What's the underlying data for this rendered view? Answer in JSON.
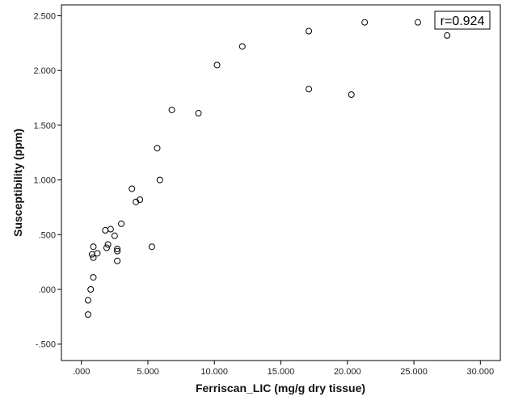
{
  "chart_data": {
    "type": "scatter",
    "xlabel": "Ferriscan_LIC (mg/g dry tissue)",
    "ylabel": "Susceptibility (ppm)",
    "xlim": [
      -1.5,
      31.5
    ],
    "ylim": [
      -0.65,
      2.6
    ],
    "x_ticks": [
      0,
      5,
      10,
      15,
      20,
      25,
      30
    ],
    "x_tick_labels": [
      ".000",
      "5.000",
      "10.000",
      "15.000",
      "20.000",
      "25.000",
      "30.000"
    ],
    "y_ticks": [
      -0.5,
      0,
      0.5,
      1.0,
      1.5,
      2.0,
      2.5
    ],
    "y_tick_labels": [
      "-.500",
      ".000",
      ".500",
      "1.000",
      "1.500",
      "2.000",
      "2.500"
    ],
    "grid": false,
    "annotation": "r=0.924",
    "points": [
      {
        "x": 0.5,
        "y": -0.23
      },
      {
        "x": 0.5,
        "y": -0.1
      },
      {
        "x": 0.7,
        "y": 0.0
      },
      {
        "x": 0.9,
        "y": 0.11
      },
      {
        "x": 0.8,
        "y": 0.32
      },
      {
        "x": 0.9,
        "y": 0.29
      },
      {
        "x": 0.9,
        "y": 0.39
      },
      {
        "x": 1.2,
        "y": 0.33
      },
      {
        "x": 1.8,
        "y": 0.54
      },
      {
        "x": 1.9,
        "y": 0.38
      },
      {
        "x": 2.0,
        "y": 0.41
      },
      {
        "x": 2.2,
        "y": 0.55
      },
      {
        "x": 2.5,
        "y": 0.49
      },
      {
        "x": 2.7,
        "y": 0.37
      },
      {
        "x": 2.7,
        "y": 0.35
      },
      {
        "x": 2.7,
        "y": 0.26
      },
      {
        "x": 3.0,
        "y": 0.6
      },
      {
        "x": 3.8,
        "y": 0.92
      },
      {
        "x": 4.1,
        "y": 0.8
      },
      {
        "x": 4.4,
        "y": 0.82
      },
      {
        "x": 5.3,
        "y": 0.39
      },
      {
        "x": 5.7,
        "y": 1.29
      },
      {
        "x": 5.9,
        "y": 1.0
      },
      {
        "x": 6.8,
        "y": 1.64
      },
      {
        "x": 8.8,
        "y": 1.61
      },
      {
        "x": 10.2,
        "y": 2.05
      },
      {
        "x": 12.1,
        "y": 2.22
      },
      {
        "x": 17.1,
        "y": 2.36
      },
      {
        "x": 17.1,
        "y": 1.83
      },
      {
        "x": 20.3,
        "y": 1.78
      },
      {
        "x": 21.3,
        "y": 2.44
      },
      {
        "x": 25.3,
        "y": 2.44
      },
      {
        "x": 27.5,
        "y": 2.32
      }
    ]
  }
}
